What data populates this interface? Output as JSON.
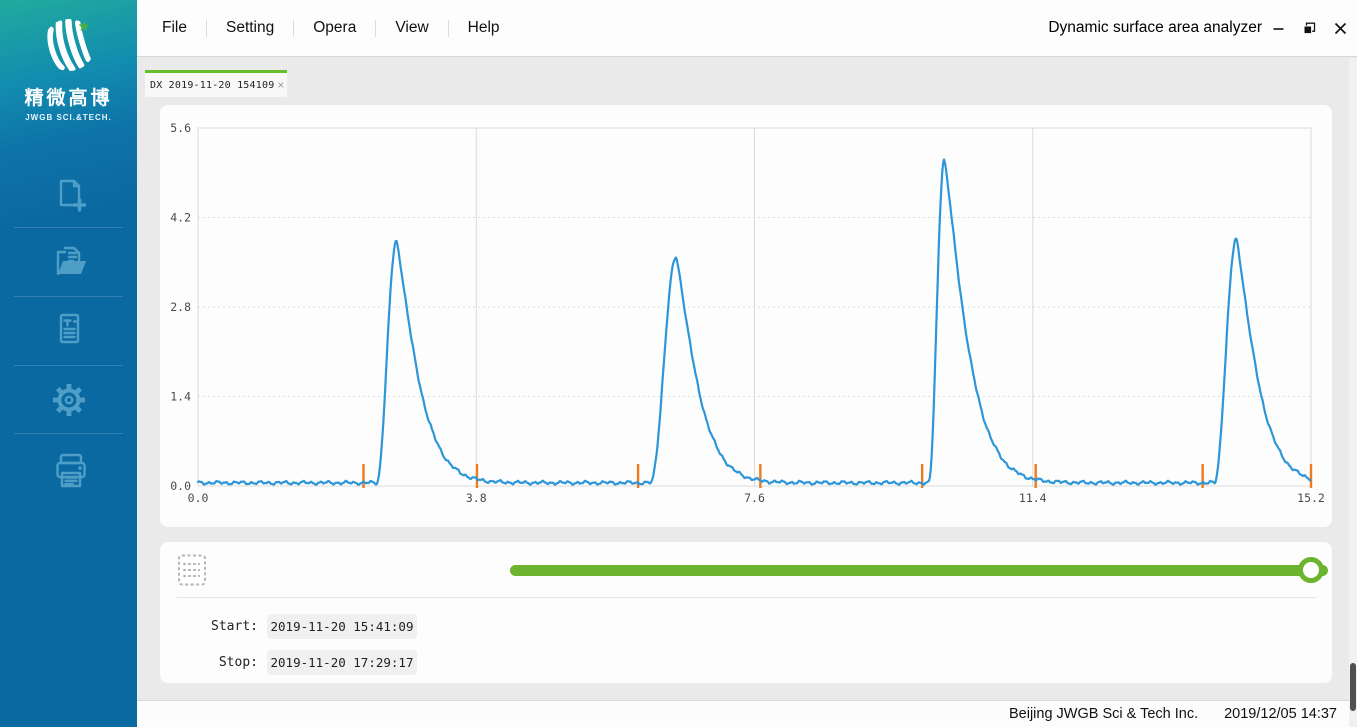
{
  "window": {
    "title": "Dynamic surface area analyzer",
    "controls": [
      "minimize",
      "restore",
      "close"
    ]
  },
  "menu": {
    "items": [
      "File",
      "Setting",
      "Opera",
      "View",
      "Help"
    ]
  },
  "sidebar": {
    "brand_cn": "精微高博",
    "brand_en": "JWGB SCI.&TECH.",
    "icons": [
      "new-record",
      "open-file",
      "report",
      "settings",
      "print"
    ]
  },
  "tabs": [
    {
      "label": "DX 2019-11-20 154109",
      "close_glyph": "×",
      "active": true
    }
  ],
  "chart_data": {
    "type": "line",
    "title": "",
    "xlabel": "",
    "ylabel": "",
    "xlim": [
      0,
      15.2
    ],
    "ylim": [
      0,
      5.6
    ],
    "x_ticks": [
      "0.0",
      "3.8",
      "7.6",
      "11.4",
      "15.2"
    ],
    "y_ticks": [
      "0.0",
      "1.4",
      "2.8",
      "4.2",
      "5.6"
    ],
    "grid": {
      "vertical": "solid",
      "horizontal": "dotted"
    },
    "baseline": 0.05,
    "series": [
      {
        "name": "detector-signal",
        "color": "#2e96d8",
        "peaks": [
          {
            "onset_x": 2.44,
            "apex_x": 2.71,
            "apex_value": 3.83,
            "tail_end_x": 3.75
          },
          {
            "onset_x": 6.18,
            "apex_x": 6.53,
            "apex_value": 3.58,
            "tail_end_x": 7.55
          },
          {
            "onset_x": 9.98,
            "apex_x": 10.19,
            "apex_value": 5.11,
            "tail_end_x": 11.3
          },
          {
            "onset_x": 13.88,
            "apex_x": 14.18,
            "apex_value": 3.86,
            "tail_end_x": 15.18
          }
        ]
      }
    ],
    "event_markers": {
      "color": "#ec7a1f",
      "x": [
        2.26,
        3.81,
        6.01,
        7.68,
        9.89,
        11.44,
        13.72,
        15.2
      ]
    },
    "grid_color": "#dcdcdc"
  },
  "player": {
    "slider_percent": 100
  },
  "times": {
    "start_label": "Start:",
    "start_value": "2019-11-20 15:41:09",
    "stop_label": "Stop:",
    "stop_value": "2019-11-20 17:29:17"
  },
  "statusbar": {
    "company": "Beijing JWGB Sci & Tech Inc.",
    "datetime": "2019/12/05 14:37"
  },
  "colors": {
    "sidebar_blue": "#0b69a2",
    "sidebar_teal": "#20ab9e",
    "icon_blue": "#4f9ec7",
    "accent_green": "#6cb42d",
    "tab_green": "#67be2b",
    "line_blue": "#2e96d8",
    "marker_orange": "#ec7a1f"
  }
}
